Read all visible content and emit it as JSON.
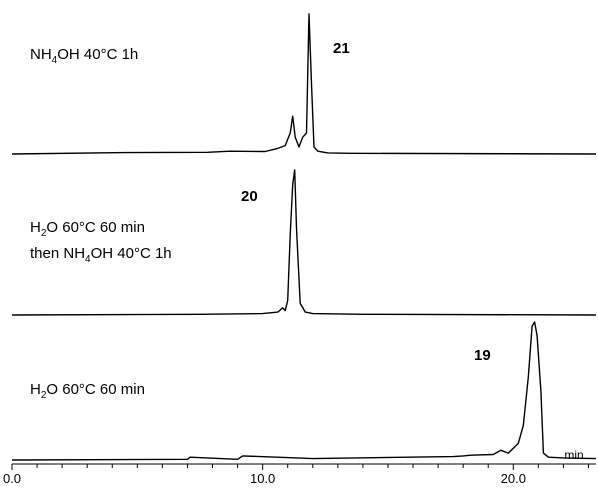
{
  "chart_data": {
    "type": "line",
    "xlabel": "",
    "x_unit": "min",
    "xlim": [
      0.0,
      23.3
    ],
    "major_ticks": [
      0.0,
      10.0,
      20.0
    ],
    "tick_labels": [
      "0.0",
      "10.0",
      "20.0"
    ],
    "minor_tick_step": 1.0,
    "grid": false,
    "series": [
      {
        "name": "NH4OH 40°C 1h",
        "label_line1": "NH",
        "label_line1_sub": "4",
        "label_line1_rest": "OH 40°C 1h",
        "peak_label": "21",
        "x": [
          0.0,
          4.5,
          7.8,
          8.7,
          10.1,
          10.6,
          10.9,
          11.1,
          11.2,
          11.3,
          11.45,
          11.6,
          11.75,
          11.85,
          11.95,
          12.05,
          12.2,
          12.6,
          13.5,
          23.3
        ],
        "y": [
          0.0,
          0.01,
          0.012,
          0.02,
          0.018,
          0.04,
          0.06,
          0.15,
          0.27,
          0.12,
          0.05,
          0.12,
          0.15,
          1.0,
          0.5,
          0.05,
          0.02,
          0.008,
          0.005,
          0.0
        ]
      },
      {
        "name": "H2O 60°C 60 min then NH4OH 40°C 1h",
        "label_line1": "H",
        "label_line1_sub": "2",
        "label_line1_rest": "O 60°C 60 min",
        "label_line2_pre": "then NH",
        "label_line2_sub": "4",
        "label_line2_rest": "OH 40°C 1h",
        "peak_label": "20",
        "x": [
          0.0,
          7.5,
          10.0,
          10.6,
          10.8,
          10.9,
          11.0,
          11.1,
          11.2,
          11.28,
          11.35,
          11.5,
          11.7,
          12.0,
          14.0,
          23.3
        ],
        "y": [
          0.0,
          0.005,
          0.01,
          0.02,
          0.05,
          0.03,
          0.1,
          0.55,
          0.9,
          1.0,
          0.6,
          0.08,
          0.02,
          0.01,
          0.005,
          0.0
        ],
        "_y0": null
      },
      {
        "name": "H2O 60°C 60 min",
        "label_line1": "H",
        "label_line1_sub": "2",
        "label_line1_rest": "O 60°C 60 min",
        "peak_label": "19",
        "x": [
          0.0,
          7.0,
          7.1,
          9.0,
          9.2,
          12.0,
          15.8,
          17.6,
          18.0,
          18.3,
          19.2,
          19.5,
          19.8,
          20.2,
          20.4,
          20.6,
          20.75,
          20.85,
          20.95,
          21.1,
          21.2,
          21.4,
          22.0,
          23.3
        ],
        "y": [
          0.0,
          0.005,
          0.02,
          0.005,
          0.03,
          0.01,
          0.02,
          0.025,
          0.03,
          0.035,
          0.04,
          0.07,
          0.05,
          0.12,
          0.25,
          0.6,
          0.97,
          1.0,
          0.9,
          0.5,
          0.05,
          0.02,
          0.015,
          0.01
        ]
      }
    ]
  }
}
